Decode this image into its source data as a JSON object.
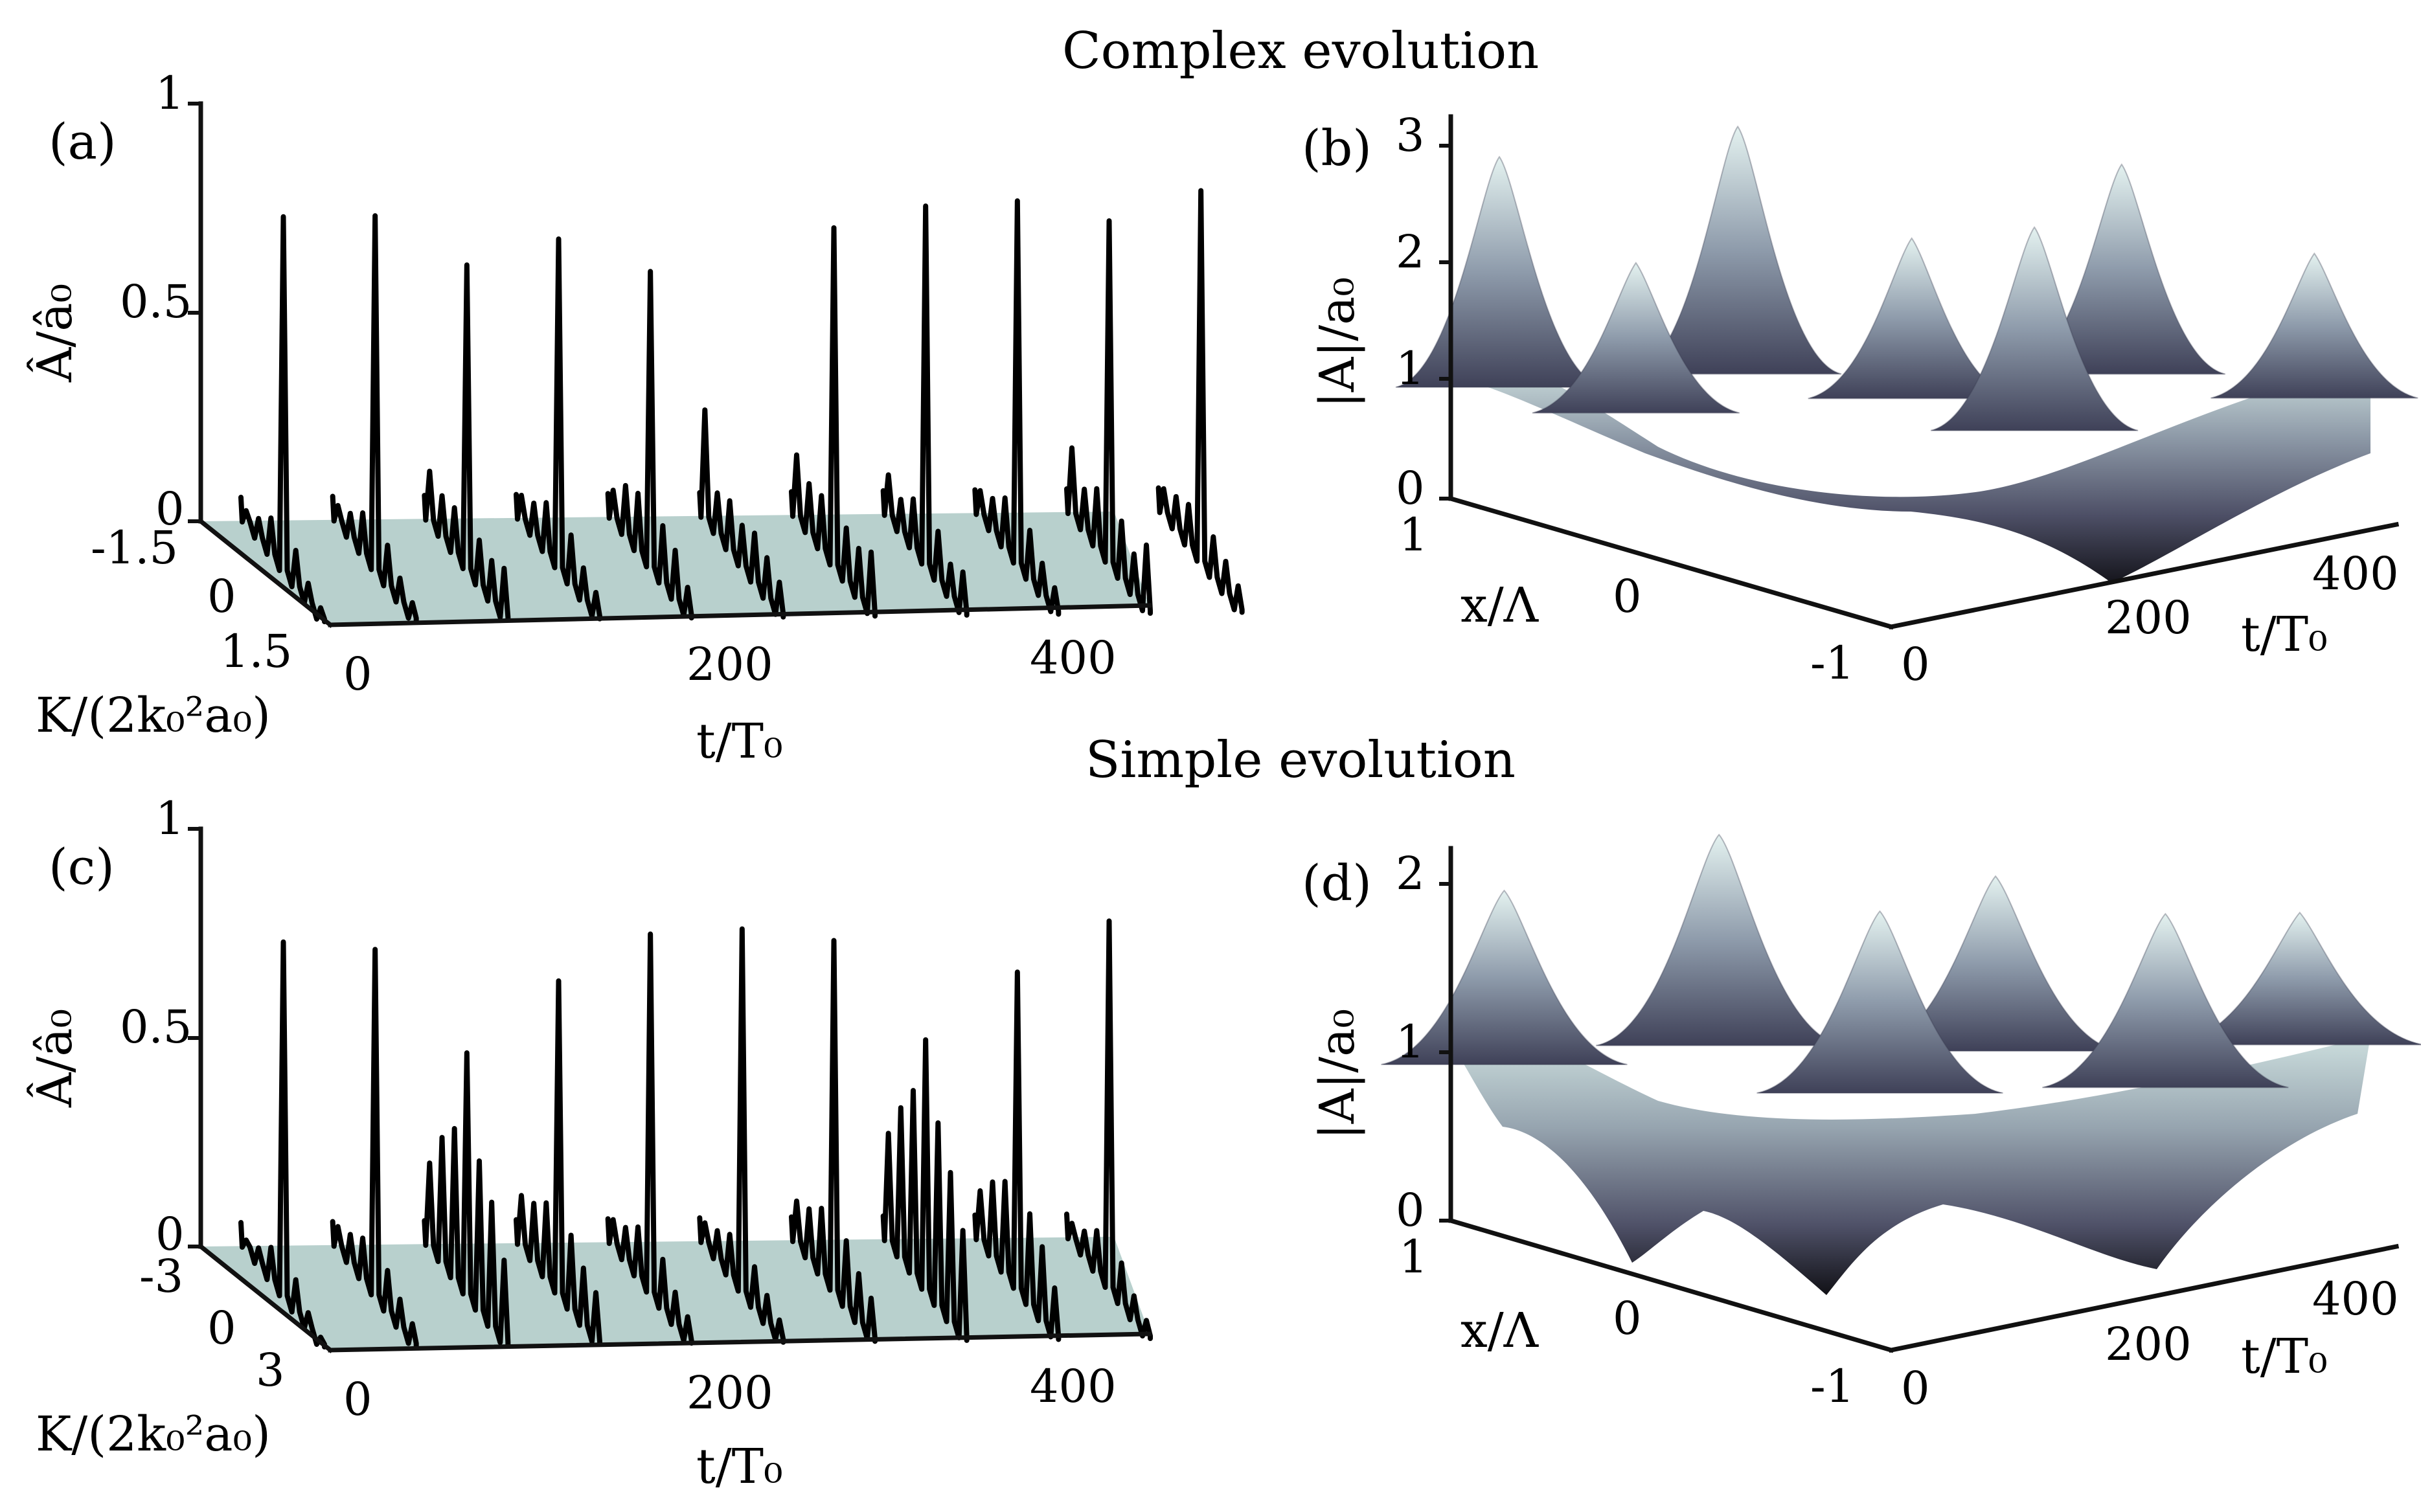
{
  "section_titles": {
    "top": "Complex evolution",
    "bottom": "Simple evolution"
  },
  "chart_data": [
    {
      "panel": "(a)",
      "type": "line",
      "style": "waterfall-3d",
      "xlabel": "t/T₀",
      "ylabel": "Â/â₀",
      "zlabel": "K/(2k₀²a₀)",
      "x_ticks": [
        "0",
        "200",
        "400"
      ],
      "y_ticks": [
        "0",
        "0.5",
        "1"
      ],
      "k_ticks": [
        "-1.5",
        "0",
        "1.5"
      ],
      "xlim": [
        0,
        450
      ],
      "ylim": [
        0,
        1
      ],
      "klim": [
        -1.5,
        1.5
      ],
      "series": [
        {
          "t": 0,
          "values": [
            0.03,
            0.05,
            0.09,
            0.85,
            0.09,
            0.05,
            0.03
          ]
        },
        {
          "t": 50,
          "values": [
            0.04,
            0.06,
            0.1,
            0.85,
            0.1,
            0.06,
            0.04
          ]
        },
        {
          "t": 100,
          "values": [
            0.12,
            0.1,
            0.11,
            0.73,
            0.11,
            0.1,
            0.12
          ]
        },
        {
          "t": 150,
          "values": [
            0.06,
            0.08,
            0.12,
            0.79,
            0.12,
            0.08,
            0.06
          ]
        },
        {
          "t": 200,
          "values": [
            0.07,
            0.12,
            0.14,
            0.71,
            0.14,
            0.12,
            0.07
          ]
        },
        {
          "t": 250,
          "values": [
            0.26,
            0.1,
            0.12,
            0.1,
            0.12,
            0.1,
            0.08
          ]
        },
        {
          "t": 300,
          "values": [
            0.15,
            0.12,
            0.13,
            0.81,
            0.13,
            0.12,
            0.15
          ]
        },
        {
          "t": 350,
          "values": [
            0.1,
            0.08,
            0.12,
            0.86,
            0.12,
            0.08,
            0.1
          ]
        },
        {
          "t": 400,
          "values": [
            0.06,
            0.08,
            0.12,
            0.87,
            0.12,
            0.08,
            0.06
          ]
        },
        {
          "t": 450,
          "values": [
            0.16,
            0.1,
            0.14,
            0.82,
            0.14,
            0.1,
            0.16
          ]
        },
        {
          "t": 500,
          "values": [
            0.06,
            0.08,
            0.1,
            0.89,
            0.1,
            0.08,
            0.06
          ]
        }
      ]
    },
    {
      "panel": "(b)",
      "type": "surface",
      "xlabel": "t/T₀",
      "ylabel": "x/Λ",
      "zlabel": "|A|/a₀",
      "t_ticks": [
        "0",
        "200",
        "400"
      ],
      "x_ticks": [
        "1",
        "0",
        "-1"
      ],
      "z_ticks": [
        "0",
        "1",
        "2",
        "3"
      ],
      "tlim": [
        0,
        450
      ],
      "xlim": [
        -1,
        1
      ],
      "zlim": [
        0,
        3.2
      ],
      "peaks": [
        {
          "t": 0,
          "x": 0.8,
          "z": 3.05
        },
        {
          "t": 60,
          "x": 0.3,
          "z": 2.2
        },
        {
          "t": 130,
          "x": 0.9,
          "z": 3.3
        },
        {
          "t": 210,
          "x": 0.4,
          "z": 2.4
        },
        {
          "t": 260,
          "x": -0.2,
          "z": 2.6
        },
        {
          "t": 330,
          "x": 0.7,
          "z": 3.0
        },
        {
          "t": 420,
          "x": 0.2,
          "z": 2.3
        }
      ]
    },
    {
      "panel": "(c)",
      "type": "line",
      "style": "waterfall-3d",
      "xlabel": "t/T₀",
      "ylabel": "Â/â₀",
      "zlabel": "K/(2k₀²a₀)",
      "x_ticks": [
        "0",
        "200",
        "400"
      ],
      "y_ticks": [
        "0",
        "0.5",
        "1"
      ],
      "k_ticks": [
        "-3",
        "0",
        "3"
      ],
      "xlim": [
        0,
        450
      ],
      "ylim": [
        0,
        1
      ],
      "klim": [
        -3,
        3
      ],
      "series": [
        {
          "t": 0,
          "values": [
            0.02,
            0.04,
            0.08,
            0.85,
            0.08,
            0.04,
            0.02
          ]
        },
        {
          "t": 50,
          "values": [
            0.05,
            0.07,
            0.1,
            0.83,
            0.1,
            0.07,
            0.05
          ]
        },
        {
          "t": 100,
          "values": [
            0.2,
            0.3,
            0.36,
            0.58,
            0.36,
            0.3,
            0.2
          ]
        },
        {
          "t": 150,
          "values": [
            0.12,
            0.14,
            0.18,
            0.75,
            0.18,
            0.14,
            0.12
          ]
        },
        {
          "t": 200,
          "values": [
            0.06,
            0.08,
            0.12,
            0.86,
            0.12,
            0.08,
            0.06
          ]
        },
        {
          "t": 250,
          "values": [
            0.05,
            0.07,
            0.1,
            0.87,
            0.1,
            0.07,
            0.05
          ]
        },
        {
          "t": 300,
          "values": [
            0.1,
            0.12,
            0.16,
            0.84,
            0.16,
            0.12,
            0.1
          ]
        },
        {
          "t": 350,
          "values": [
            0.26,
            0.36,
            0.44,
            0.6,
            0.44,
            0.36,
            0.26
          ]
        },
        {
          "t": 400,
          "values": [
            0.12,
            0.18,
            0.22,
            0.76,
            0.22,
            0.18,
            0.12
          ]
        },
        {
          "t": 450,
          "values": [
            0.04,
            0.06,
            0.1,
            0.88,
            0.1,
            0.06,
            0.04
          ]
        }
      ]
    },
    {
      "panel": "(d)",
      "type": "surface",
      "xlabel": "t/T₀",
      "ylabel": "x/Λ",
      "zlabel": "|A|/a₀",
      "t_ticks": [
        "0",
        "200",
        "400"
      ],
      "x_ticks": [
        "1",
        "0",
        "-1"
      ],
      "z_ticks": [
        "0",
        "1",
        "2"
      ],
      "tlim": [
        0,
        450
      ],
      "xlim": [
        -1,
        1
      ],
      "zlim": [
        0,
        2.3
      ],
      "peaks": [
        {
          "t": 0,
          "x": 0.7,
          "z": 2.0
        },
        {
          "t": 120,
          "x": 0.9,
          "z": 2.3
        },
        {
          "t": 180,
          "x": -0.1,
          "z": 2.0
        },
        {
          "t": 260,
          "x": 0.6,
          "z": 2.1
        },
        {
          "t": 330,
          "x": -0.2,
          "z": 2.0
        },
        {
          "t": 420,
          "x": 0.5,
          "z": 1.9
        }
      ]
    }
  ]
}
